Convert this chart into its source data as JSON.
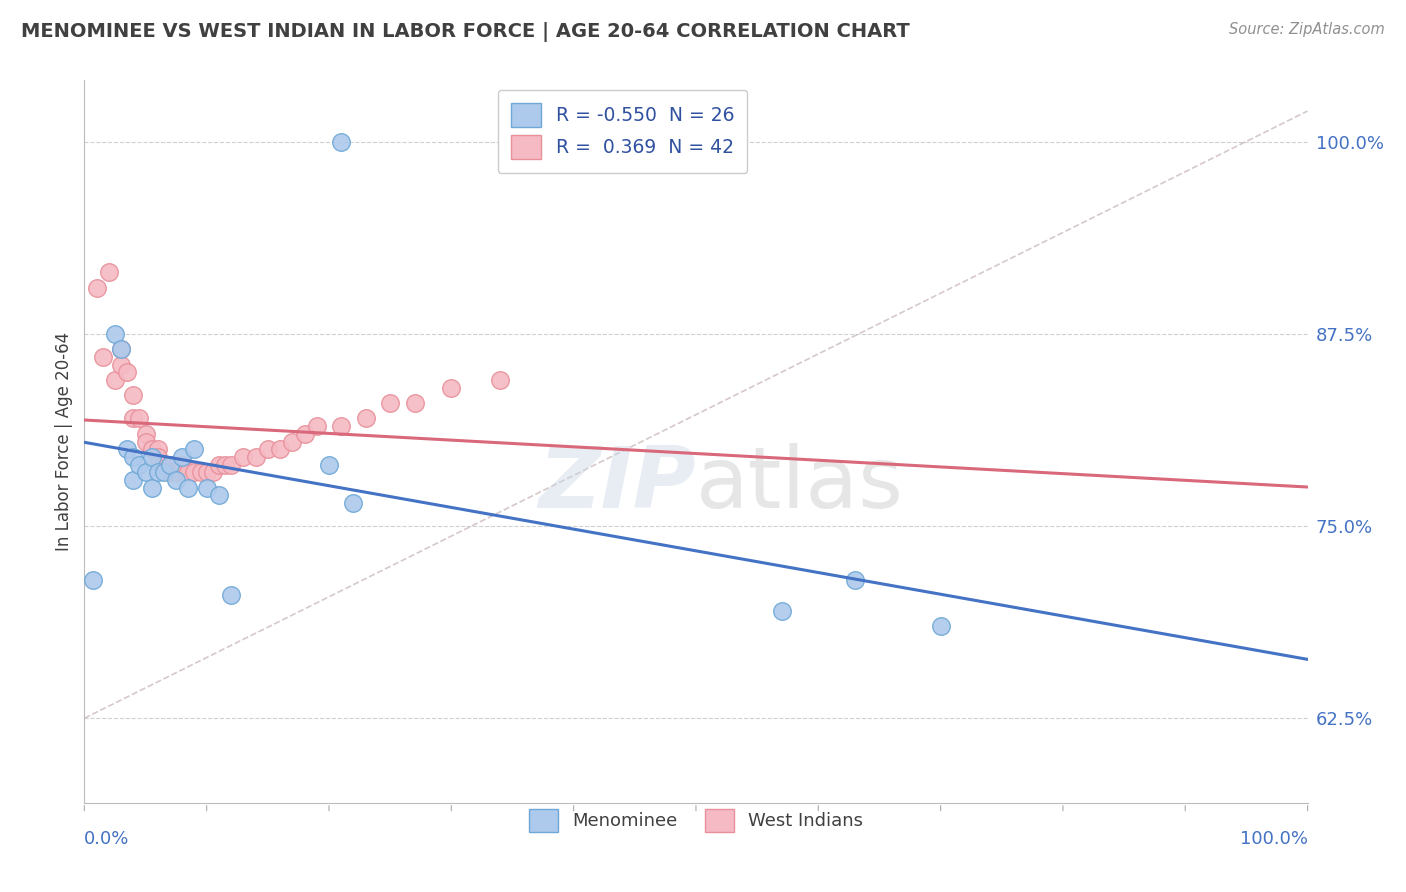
{
  "title": "MENOMINEE VS WEST INDIAN IN LABOR FORCE | AGE 20-64 CORRELATION CHART",
  "source": "Source: ZipAtlas.com",
  "ylabel": "In Labor Force | Age 20-64",
  "ytick_values": [
    0.625,
    0.75,
    0.875,
    1.0
  ],
  "ytick_labels": [
    "62.5%",
    "75.0%",
    "87.5%",
    "100.0%"
  ],
  "xlim": [
    0.0,
    1.0
  ],
  "ylim": [
    0.57,
    1.04
  ],
  "watermark_text": "ZIPatlas",
  "legend_line1": "R = -0.550  N = 26",
  "legend_line2": "R =  0.369  N = 42",
  "menominee_color": "#adc9eb",
  "westindian_color": "#f5bac4",
  "menominee_edge": "#6fa8d6",
  "westindian_edge": "#e8909a",
  "trend_blue": "#4472c4",
  "trend_pink": "#d9697a",
  "dashed_color": "#ccbbbb",
  "grid_color": "#d0d0d0",
  "background_color": "#ffffff",
  "title_color": "#404040",
  "source_color": "#909090",
  "ylabel_color": "#404040",
  "tick_color": "#4472c4",
  "menominee_x": [
    0.007,
    0.025,
    0.03,
    0.035,
    0.04,
    0.04,
    0.045,
    0.05,
    0.055,
    0.055,
    0.06,
    0.065,
    0.07,
    0.075,
    0.08,
    0.085,
    0.09,
    0.1,
    0.11,
    0.12,
    0.2,
    0.22,
    0.57,
    0.63,
    0.7,
    0.21
  ],
  "menominee_y": [
    0.715,
    0.875,
    0.865,
    0.8,
    0.78,
    0.795,
    0.79,
    0.785,
    0.795,
    0.775,
    0.785,
    0.785,
    0.79,
    0.78,
    0.795,
    0.775,
    0.8,
    0.775,
    0.77,
    0.705,
    0.79,
    0.765,
    0.695,
    0.715,
    0.685,
    1.0
  ],
  "westindian_x": [
    0.01,
    0.015,
    0.02,
    0.025,
    0.03,
    0.03,
    0.035,
    0.04,
    0.04,
    0.045,
    0.05,
    0.05,
    0.055,
    0.06,
    0.06,
    0.065,
    0.07,
    0.07,
    0.075,
    0.075,
    0.08,
    0.085,
    0.09,
    0.095,
    0.1,
    0.105,
    0.11,
    0.115,
    0.12,
    0.13,
    0.14,
    0.15,
    0.16,
    0.17,
    0.18,
    0.19,
    0.21,
    0.23,
    0.25,
    0.27,
    0.3,
    0.34
  ],
  "westindian_y": [
    0.905,
    0.86,
    0.915,
    0.845,
    0.865,
    0.855,
    0.85,
    0.835,
    0.82,
    0.82,
    0.81,
    0.805,
    0.8,
    0.8,
    0.795,
    0.79,
    0.79,
    0.785,
    0.785,
    0.785,
    0.79,
    0.785,
    0.785,
    0.785,
    0.785,
    0.785,
    0.79,
    0.79,
    0.79,
    0.795,
    0.795,
    0.8,
    0.8,
    0.805,
    0.81,
    0.815,
    0.815,
    0.82,
    0.83,
    0.83,
    0.84,
    0.845
  ]
}
